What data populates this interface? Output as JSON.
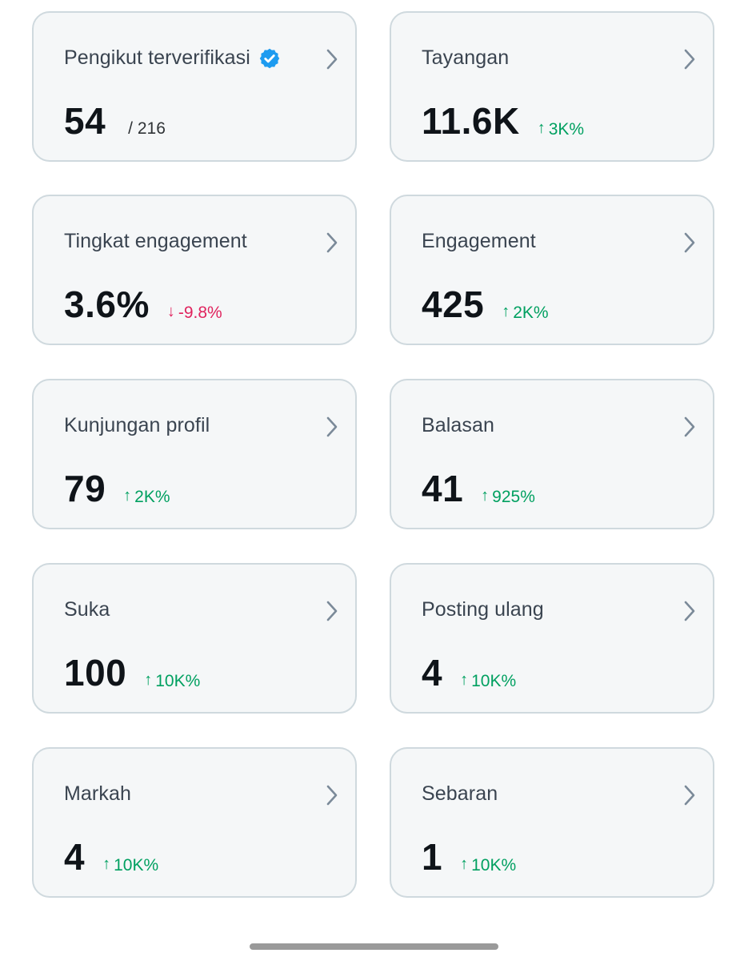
{
  "cards": [
    {
      "title": "Pengikut terverifikasi",
      "value": "54",
      "sub": "/ 216",
      "change": "",
      "arrow": "",
      "direction": ""
    },
    {
      "title": "Tayangan",
      "value": "11.6K",
      "sub": "",
      "change": "3K%",
      "arrow": "↑",
      "direction": "up"
    },
    {
      "title": "Tingkat engagement",
      "value": "3.6%",
      "sub": "",
      "change": "-9.8%",
      "arrow": "↓",
      "direction": "down"
    },
    {
      "title": "Engagement",
      "value": "425",
      "sub": "",
      "change": "2K%",
      "arrow": "↑",
      "direction": "up"
    },
    {
      "title": "Kunjungan profil",
      "value": "79",
      "sub": "",
      "change": "2K%",
      "arrow": "↑",
      "direction": "up"
    },
    {
      "title": "Balasan",
      "value": "41",
      "sub": "",
      "change": "925%",
      "arrow": "↑",
      "direction": "up"
    },
    {
      "title": "Suka",
      "value": "100",
      "sub": "",
      "change": "10K%",
      "arrow": "↑",
      "direction": "up"
    },
    {
      "title": "Posting ulang",
      "value": "4",
      "sub": "",
      "change": "10K%",
      "arrow": "↑",
      "direction": "up"
    },
    {
      "title": "Markah",
      "value": "4",
      "sub": "",
      "change": "10K%",
      "arrow": "↑",
      "direction": "up"
    },
    {
      "title": "Sebaran",
      "value": "1",
      "sub": "",
      "change": "10K%",
      "arrow": "↑",
      "direction": "up"
    }
  ],
  "icons": {
    "verified": "verified-badge-icon",
    "chevron": "chevron-right-icon"
  },
  "colors": {
    "up": "#00a060",
    "down": "#e0245e",
    "verified": "#1d9bf0"
  }
}
